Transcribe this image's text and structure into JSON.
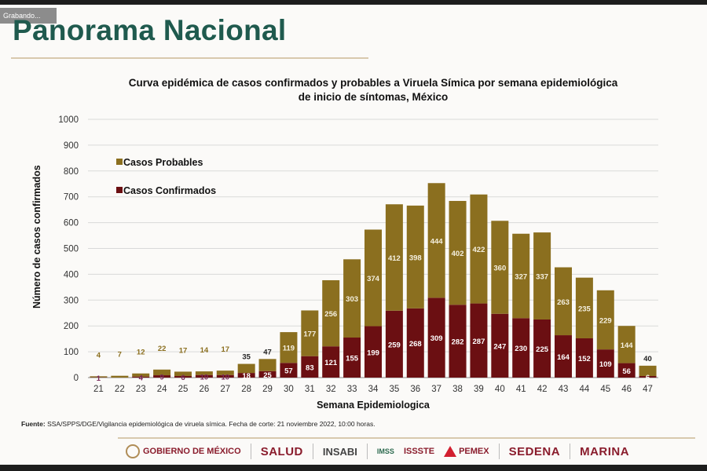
{
  "window": {
    "recording_label": "Grabando..."
  },
  "page": {
    "title": "Panorama Nacional"
  },
  "chart_title_lines": [
    "Curva epidémica de casos confirmados y probables a Viruela Símica por semana epidemiológica",
    "de inicio de síntomas, México"
  ],
  "source": {
    "label": "Fuente:",
    "text": " SSA/SPPS/DGE/Vigilancia epidemiológica de viruela símica. Fecha de corte: 21 noviembre 2022, 10:00 horas."
  },
  "logos": [
    "GOBIERNO DE MÉXICO",
    "SALUD",
    "INSABI",
    "IMSS",
    "ISSSTE",
    "PEMEX",
    "SEDENA",
    "MARINA"
  ],
  "colors": {
    "probables": "#8b6f1f",
    "confirmados": "#6b0f12",
    "grid": "#d9d9d9",
    "title_green": "#1f5a4e"
  },
  "chart_data": {
    "type": "bar",
    "stacked": true,
    "xlabel": "Semana Epidemiologica",
    "ylabel": "Número de casos confirmados",
    "ylim": [
      0,
      1000
    ],
    "yticks": [
      0,
      100,
      200,
      300,
      400,
      500,
      600,
      700,
      800,
      900,
      1000
    ],
    "grid": true,
    "legend_position": "top-left",
    "categories": [
      "21",
      "22",
      "23",
      "24",
      "25",
      "26",
      "27",
      "28",
      "29",
      "30",
      "31",
      "32",
      "33",
      "34",
      "35",
      "36",
      "37",
      "38",
      "39",
      "40",
      "41",
      "42",
      "43",
      "44",
      "45",
      "46",
      "47"
    ],
    "series": [
      {
        "name": "Casos Confirmados",
        "values": [
          1,
          0,
          4,
          9,
          6,
          10,
          10,
          18,
          25,
          57,
          83,
          121,
          155,
          199,
          259,
          268,
          309,
          282,
          287,
          247,
          230,
          225,
          164,
          152,
          109,
          56,
          6
        ]
      },
      {
        "name": "Casos Probables",
        "values": [
          4,
          7,
          12,
          22,
          17,
          14,
          17,
          35,
          47,
          119,
          177,
          256,
          303,
          374,
          412,
          398,
          444,
          402,
          422,
          360,
          327,
          337,
          263,
          235,
          229,
          144,
          40
        ]
      }
    ]
  }
}
